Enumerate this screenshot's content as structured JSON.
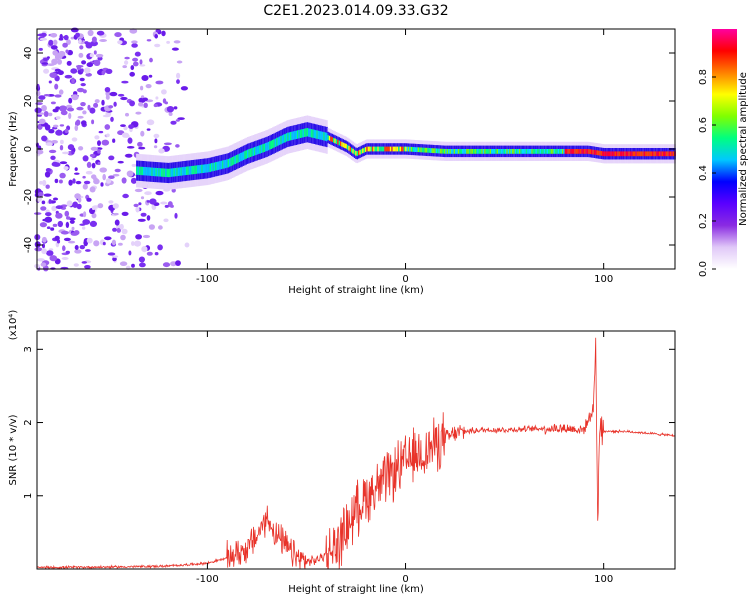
{
  "title": "C2E1.2023.014.09.33.G32",
  "chart_data": [
    {
      "type": "heatmap",
      "xlabel": "Height of straight line (km)",
      "ylabel": "Frequency (Hz)",
      "xlim": [
        -186,
        136
      ],
      "ylim": [
        -50,
        50
      ],
      "x_ticks": [
        -100,
        0,
        100
      ],
      "y_ticks": [
        -40,
        -20,
        0,
        20,
        40
      ],
      "colorbar": {
        "label": "Normalized spectral amplitude",
        "range": [
          0,
          1
        ],
        "ticks": [
          "0.0",
          "0.2",
          "0.4",
          "0.6",
          "0.8"
        ],
        "colormap": [
          "#ffffff",
          "#e0c8f8",
          "#8a2be2",
          "#5a00ff",
          "#0000ff",
          "#00c8ff",
          "#00ff80",
          "#80ff00",
          "#ffff00",
          "#ff8000",
          "#ff0000",
          "#ff00a0"
        ]
      },
      "ridge": {
        "x": [
          -136,
          -120,
          -100,
          -90,
          -80,
          -70,
          -60,
          -50,
          -45,
          -40,
          -35,
          -30,
          -25,
          -20,
          -10,
          0,
          20,
          50,
          80,
          92,
          100,
          136
        ],
        "y": [
          -9,
          -10,
          -8,
          -6,
          -2,
          1,
          5,
          7,
          6,
          5,
          3,
          1,
          -2,
          0,
          0,
          0,
          -1,
          -1,
          -1,
          -1,
          -2,
          -2
        ]
      },
      "noise_band": {
        "x_range": [
          -186,
          -120
        ]
      }
    },
    {
      "type": "line",
      "xlabel": "Height of straight line (km)",
      "ylabel": "SNR (10 * v/v)",
      "y_scale_label": "(x10⁴)",
      "xlim": [
        -186,
        136
      ],
      "ylim": [
        0,
        3.25
      ],
      "x_ticks": [
        -100,
        0,
        100
      ],
      "y_ticks": [
        1,
        2,
        3
      ],
      "color": "#e8332a",
      "envelope": {
        "x": [
          -186,
          -140,
          -120,
          -110,
          -100,
          -90,
          -80,
          -75,
          -70,
          -65,
          -60,
          -55,
          -50,
          -45,
          -40,
          -35,
          -30,
          -25,
          -20,
          -15,
          -10,
          -5,
          0,
          5,
          10,
          15,
          20,
          25,
          30,
          40,
          50,
          60,
          70,
          80,
          90,
          95,
          96,
          97,
          98,
          99,
          100,
          110,
          120,
          136
        ],
        "y": [
          0.02,
          0.03,
          0.04,
          0.06,
          0.08,
          0.15,
          0.28,
          0.45,
          0.7,
          0.45,
          0.3,
          0.15,
          0.1,
          0.12,
          0.2,
          0.3,
          0.55,
          0.8,
          1.0,
          1.1,
          1.2,
          1.35,
          1.45,
          1.55,
          1.6,
          1.7,
          1.78,
          1.85,
          1.88,
          1.9,
          1.9,
          1.91,
          1.92,
          1.92,
          1.9,
          2.2,
          3.2,
          0.6,
          2.0,
          1.9,
          1.88,
          1.88,
          1.86,
          1.82
        ]
      }
    }
  ]
}
